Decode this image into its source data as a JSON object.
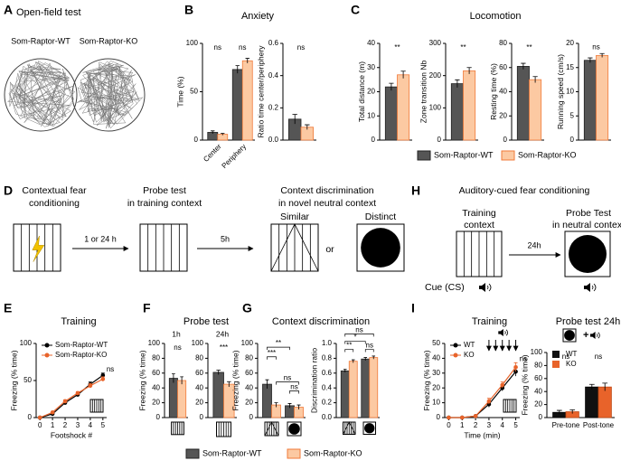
{
  "panel_labels": [
    "A",
    "B",
    "C",
    "D",
    "E",
    "F",
    "G",
    "H",
    "I"
  ],
  "open_field": {
    "title": "Open-field test",
    "labels": [
      "Som-Raptor-WT",
      "Som-Raptor-KO"
    ]
  },
  "section_titles": {
    "anxiety": "Anxiety",
    "locomotion": "Locomotion",
    "probe_test": "Probe test",
    "context_discrimination": "Context discrimination"
  },
  "legend": [
    "Som-Raptor-WT",
    "Som-Raptor-KO"
  ],
  "contextual_protocol": {
    "steps": [
      [
        "Contextual fear",
        "conditioning"
      ],
      [
        "Probe test",
        "in training context"
      ],
      [
        "Context discrimination",
        "in novel neutral context"
      ]
    ],
    "intervals": [
      "1 or 24 h",
      "5h"
    ],
    "contexts": [
      "Similar",
      "or",
      "Distinct"
    ]
  },
  "auditory_protocol": {
    "title": "Auditory-cued fear conditioning",
    "steps": [
      [
        "Training",
        "context"
      ],
      [
        "Probe Test",
        "in neutral context"
      ]
    ],
    "interval": "24h",
    "cue": "Cue (CS)"
  },
  "chart_data": [
    {
      "type": "bar",
      "ylabel": "Time (%)",
      "categories": [
        "Center",
        "Periphery"
      ],
      "series": [
        {
          "color": "#555555",
          "edgecolor": "#222222",
          "values": [
            8,
            73
          ],
          "errors": [
            1.5,
            4
          ]
        },
        {
          "color": "#fcc9a2",
          "edgecolor": "#f07a3a",
          "values": [
            6,
            82
          ],
          "errors": [
            1,
            2.5
          ]
        }
      ],
      "ylim": [
        0,
        100
      ],
      "yticks": [
        0,
        50,
        100
      ],
      "significance": [
        "ns",
        "ns"
      ]
    },
    {
      "type": "bar",
      "ylabel": "Ratio time center/periphery",
      "categories": [
        null
      ],
      "series": [
        {
          "color": "#555555",
          "edgecolor": "#222222",
          "values": [
            0.13
          ],
          "errors": [
            0.03
          ]
        },
        {
          "color": "#fcc9a2",
          "edgecolor": "#f07a3a",
          "values": [
            0.08
          ],
          "errors": [
            0.015
          ]
        }
      ],
      "ylim": [
        0,
        0.6
      ],
      "yticks": [
        {
          "value": 0,
          "label": "0.0"
        },
        0.2,
        0.4,
        0.6
      ],
      "significance": [
        "ns"
      ]
    },
    {
      "type": "bar",
      "ylabel": "Total distance (m)",
      "categories": [
        null
      ],
      "series": [
        {
          "color": "#555555",
          "edgecolor": "#222222",
          "values": [
            22
          ],
          "errors": [
            1.5
          ]
        },
        {
          "color": "#fcc9a2",
          "edgecolor": "#f07a3a",
          "values": [
            27
          ],
          "errors": [
            1.5
          ]
        }
      ],
      "ylim": [
        0,
        40
      ],
      "yticks": [
        0,
        10,
        20,
        30,
        40
      ],
      "significance": [
        "**"
      ]
    },
    {
      "type": "bar",
      "ylabel": "Zone transition Nb",
      "categories": [
        null
      ],
      "series": [
        {
          "color": "#555555",
          "edgecolor": "#222222",
          "values": [
            175
          ],
          "errors": [
            12
          ]
        },
        {
          "color": "#fcc9a2",
          "edgecolor": "#f07a3a",
          "values": [
            215
          ],
          "errors": [
            10
          ]
        }
      ],
      "ylim": [
        0,
        300
      ],
      "yticks": [
        0,
        100,
        200,
        300
      ],
      "significance": [
        "**"
      ]
    },
    {
      "type": "bar",
      "ylabel": "Resting time (%)",
      "categories": [
        null
      ],
      "series": [
        {
          "color": "#555555",
          "edgecolor": "#222222",
          "values": [
            61
          ],
          "errors": [
            2.5
          ]
        },
        {
          "color": "#fcc9a2",
          "edgecolor": "#f07a3a",
          "values": [
            50
          ],
          "errors": [
            2.5
          ]
        }
      ],
      "ylim": [
        0,
        80
      ],
      "yticks": [
        0,
        20,
        40,
        60,
        80
      ],
      "significance": [
        "**"
      ]
    },
    {
      "type": "bar",
      "ylabel": "Running speed (cm/s)",
      "categories": [
        null
      ],
      "series": [
        {
          "color": "#555555",
          "edgecolor": "#222222",
          "values": [
            16.5
          ],
          "errors": [
            0.5
          ]
        },
        {
          "color": "#fcc9a2",
          "edgecolor": "#f07a3a",
          "values": [
            17.5
          ],
          "errors": [
            0.4
          ]
        }
      ],
      "ylim": [
        0,
        20
      ],
      "yticks": [
        0,
        5,
        10,
        15,
        20
      ],
      "significance": [
        "ns"
      ]
    },
    {
      "type": "line",
      "title": "Training",
      "xlabel": "Footshock #",
      "ylabel": "Freezing (% time)",
      "x": [
        0,
        1,
        2,
        3,
        4,
        5
      ],
      "xlim": [
        -0.3,
        5.3
      ],
      "xticks": [
        0,
        1,
        2,
        3,
        4,
        5
      ],
      "ylim": [
        0,
        100
      ],
      "yticks": [
        0,
        50,
        100
      ],
      "series": [
        {
          "name": "Som-Raptor-WT",
          "color": "#000000",
          "values": [
            0,
            5,
            20,
            31,
            45,
            57
          ],
          "errors": [
            0.5,
            1,
            2,
            2,
            3,
            3
          ]
        },
        {
          "name": "Som-Raptor-KO",
          "color": "#e8632a",
          "values": [
            0,
            7,
            22,
            33,
            43,
            52
          ],
          "errors": [
            0.5,
            1,
            2,
            2,
            3,
            3
          ]
        }
      ],
      "significance": "ns",
      "legend": "upper left"
    },
    {
      "type": "bar",
      "title": "1h",
      "ylabel": "Freezing (% time)",
      "categories": [
        null
      ],
      "series": [
        {
          "color": "#555555",
          "edgecolor": "#222222",
          "values": [
            53
          ],
          "errors": [
            6
          ]
        },
        {
          "color": "#fcc9a2",
          "edgecolor": "#f07a3a",
          "values": [
            50
          ],
          "errors": [
            5
          ]
        }
      ],
      "ylim": [
        0,
        100
      ],
      "yticks": [
        0,
        20,
        40,
        60,
        80,
        100
      ],
      "significance": [
        "ns"
      ]
    },
    {
      "type": "bar",
      "title": "24h",
      "categories": [
        null
      ],
      "series": [
        {
          "color": "#555555",
          "edgecolor": "#222222",
          "values": [
            61
          ],
          "errors": [
            3
          ]
        },
        {
          "color": "#fcc9a2",
          "edgecolor": "#f07a3a",
          "values": [
            45
          ],
          "errors": [
            3.5
          ]
        }
      ],
      "ylim": [
        0,
        100
      ],
      "yticks": [
        0,
        20,
        40,
        60,
        80,
        100
      ],
      "significance": [
        "***"
      ]
    },
    {
      "type": "bar",
      "ylabel": "Freezing (% time)",
      "categories": [
        null,
        null
      ],
      "series": [
        {
          "color": "#555555",
          "edgecolor": "#222222",
          "values": [
            45,
            16
          ],
          "errors": [
            6,
            3
          ]
        },
        {
          "color": "#fcc9a2",
          "edgecolor": "#f07a3a",
          "values": [
            17,
            14
          ],
          "errors": [
            3,
            3
          ]
        }
      ],
      "ylim": [
        0,
        100
      ],
      "yticks": [
        0,
        20,
        40,
        60,
        80,
        100
      ],
      "annotations": [
        "***",
        "**",
        "ns",
        "ns"
      ]
    },
    {
      "type": "bar",
      "ylabel": "Discrimination ratio",
      "categories": [
        null,
        null
      ],
      "series": [
        {
          "color": "#555555",
          "edgecolor": "#222222",
          "values": [
            0.63,
            0.79
          ],
          "errors": [
            0.02,
            0.02
          ]
        },
        {
          "color": "#fcc9a2",
          "edgecolor": "#f07a3a",
          "values": [
            0.76,
            0.81
          ],
          "errors": [
            0.02,
            0.02
          ]
        }
      ],
      "ylim": [
        0,
        1
      ],
      "yticks": [
        {
          "value": 0,
          "label": "0.0"
        },
        0.2,
        0.4,
        0.6,
        0.8,
        {
          "value": 1,
          "label": "1.0"
        }
      ],
      "annotations": [
        "**",
        "*",
        "ns",
        "ns"
      ]
    },
    {
      "type": "line",
      "title": "Training",
      "xlabel": "Time (min)",
      "ylabel": "Freezing (% time)",
      "x": [
        0,
        1,
        2,
        3,
        4,
        5
      ],
      "xlim": [
        -0.3,
        5.3
      ],
      "xticks": [
        0,
        1,
        2,
        3,
        4,
        5
      ],
      "ylim": [
        0,
        50
      ],
      "yticks": [
        0,
        10,
        20,
        30,
        40,
        50
      ],
      "series": [
        {
          "name": "WT",
          "color": "#000000",
          "values": [
            0,
            0,
            1,
            9,
            20,
            31
          ],
          "errors": [
            0.3,
            0.3,
            0.5,
            2,
            2,
            3
          ]
        },
        {
          "name": "KO",
          "color": "#e8632a",
          "values": [
            0,
            0,
            1,
            11,
            22,
            34
          ],
          "errors": [
            0.3,
            0.3,
            0.5,
            2,
            2,
            3
          ]
        }
      ],
      "significance": "ns",
      "legend": "upper left"
    },
    {
      "type": "bar",
      "title": "Probe test 24h",
      "ylabel": "Freezing (% time)",
      "categories": [
        "Pre-tone",
        "Post-tone"
      ],
      "series": [
        {
          "name": "WT",
          "color": "#111111",
          "edgecolor": "#000000",
          "values": [
            8,
            47
          ],
          "errors": [
            3,
            4
          ]
        },
        {
          "name": "KO",
          "color": "#e8632a",
          "edgecolor": "#c04a15",
          "values": [
            9,
            47
          ],
          "errors": [
            3,
            6
          ]
        }
      ],
      "ylim": [
        0,
        100
      ],
      "yticks": [
        0,
        20,
        40,
        60,
        80,
        100
      ],
      "significance": [
        "ns",
        "ns"
      ],
      "legend": "upper left",
      "cue_label": "+"
    }
  ]
}
